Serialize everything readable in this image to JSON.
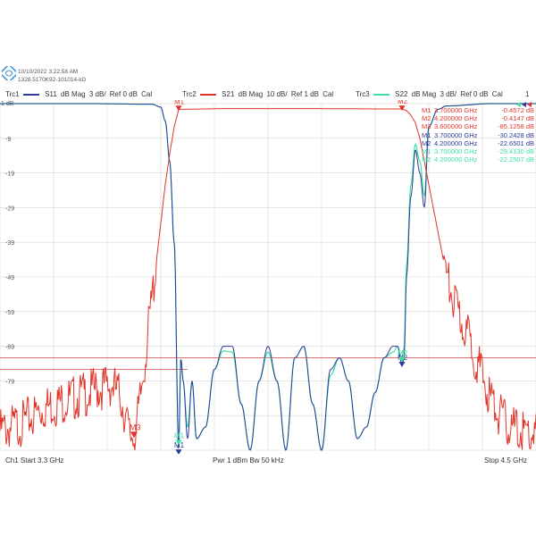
{
  "header": {
    "timestamp": "10/10/2022 3:22:58 AM",
    "device_id": "1328.5170K92-101014-kD"
  },
  "traces": [
    {
      "id": "Trc1",
      "param": "S11",
      "format": "dB Mag",
      "scale": "3 dB/",
      "ref": "Ref 0 dB",
      "cal": "Cal",
      "color": "#2b3a9c"
    },
    {
      "id": "Trc2",
      "param": "S21",
      "format": "dB Mag",
      "scale": "10 dB/",
      "ref": "Ref 1 dB",
      "cal": "Cal",
      "color": "#e0342a"
    },
    {
      "id": "Trc3",
      "param": "S22",
      "format": "dB Mag",
      "scale": "3 dB/",
      "ref": "Ref 0 dB",
      "cal": "Cal",
      "color": "#3ee0a0"
    }
  ],
  "channel_tag": "1",
  "footer": {
    "start": "Ch1  Start  3.3 GHz",
    "power": "Pwr  1 dBm  Bw  50 kHz",
    "stop": "Stop  4.5 GHz"
  },
  "markers_table": [
    {
      "m": "M1",
      "freq": "3.700000 GHz",
      "val": "-0.4572 dB",
      "color": "#e0342a"
    },
    {
      "m": "M2",
      "freq": "4.200000 GHz",
      "val": "-0.4147 dB",
      "color": "#e0342a"
    },
    {
      "m": "M3",
      "freq": "3.600000 GHz",
      "val": "-85.1258 dB",
      "color": "#e0342a"
    },
    {
      "m": "M1",
      "freq": "3.700000 GHz",
      "val": "-30.2428 dB",
      "color": "#2b3a9c"
    },
    {
      "m": "M2",
      "freq": "4.200000 GHz",
      "val": "-22.6501 dB",
      "color": "#2b3a9c"
    },
    {
      "m": "M1",
      "freq": "3.700000 GHz",
      "val": "-29.4130 dB",
      "color": "#3ee0a0"
    },
    {
      "m": "M2",
      "freq": "4.200000 GHz",
      "val": "-22.2507 dB",
      "color": "#3ee0a0"
    }
  ],
  "y_tick_labels": [
    "1 dB",
    "-9",
    "-19",
    "-29",
    "-39",
    "-49",
    "-59",
    "-69",
    "-79"
  ],
  "limit_label": "",
  "chart_data": {
    "type": "line",
    "x_unit": "GHz",
    "xlim": [
      3.3,
      4.5
    ],
    "s21_ylim": [
      -89,
      1
    ],
    "refl_ylim": [
      -30,
      0
    ],
    "series": [
      {
        "name": "S21",
        "color": "#e0342a",
        "x": [
          3.3,
          3.35,
          3.4,
          3.45,
          3.5,
          3.52,
          3.55,
          3.57,
          3.58,
          3.59,
          3.6,
          3.61,
          3.62,
          3.63,
          3.64,
          3.65,
          3.66,
          3.67,
          3.68,
          3.69,
          3.7,
          3.75,
          3.8,
          3.9,
          4.0,
          4.1,
          4.15,
          4.18,
          4.2,
          4.21,
          4.22,
          4.23,
          4.24,
          4.25,
          4.26,
          4.27,
          4.28,
          4.29,
          4.3,
          4.32,
          4.35,
          4.38,
          4.4,
          4.42,
          4.44,
          4.46,
          4.5
        ],
        "y": [
          -84,
          -82,
          -78,
          -76,
          -74,
          -73,
          -72,
          -75,
          -80,
          -85,
          -85,
          -80,
          -70,
          -60,
          -50,
          -40,
          -30,
          -20,
          -12,
          -5,
          -0.5,
          -0.4,
          -0.3,
          -0.3,
          -0.3,
          -0.35,
          -0.4,
          -0.4,
          -0.4,
          -0.8,
          -2,
          -4,
          -8,
          -14,
          -20,
          -26,
          -32,
          -38,
          -44,
          -52,
          -60,
          -70,
          -76,
          -80,
          -83,
          -84,
          -85
        ]
      },
      {
        "name": "S11",
        "color": "#2b3a9c",
        "x": [
          3.3,
          3.5,
          3.64,
          3.66,
          3.67,
          3.68,
          3.69,
          3.7,
          3.705,
          3.71,
          3.72,
          3.73,
          3.74,
          3.76,
          3.78,
          3.8,
          3.82,
          3.84,
          3.86,
          3.88,
          3.9,
          3.92,
          3.94,
          3.96,
          3.98,
          4.0,
          4.02,
          4.04,
          4.06,
          4.08,
          4.1,
          4.12,
          4.14,
          4.16,
          4.18,
          4.19,
          4.2,
          4.205,
          4.21,
          4.22,
          4.23,
          4.24,
          4.25,
          4.26,
          4.28,
          4.3,
          4.4,
          4.5
        ],
        "y": [
          0,
          0,
          -0.05,
          -0.3,
          -1.5,
          -5,
          -12,
          -30,
          -22,
          -24,
          -29,
          -24,
          -29,
          -28,
          -23,
          -21,
          -21,
          -26,
          -30,
          -24,
          -21,
          -24,
          -30,
          -22,
          -21,
          -26,
          -30,
          -23,
          -22,
          -24,
          -29,
          -28,
          -25,
          -22,
          -21,
          -21,
          -22.6,
          -22,
          -15,
          -8,
          -4,
          -6,
          -9,
          -2,
          -0.5,
          -0.2,
          0,
          0
        ]
      },
      {
        "name": "S22",
        "color": "#3ee0a0",
        "x": [
          3.3,
          3.5,
          3.64,
          3.66,
          3.67,
          3.68,
          3.69,
          3.7,
          3.705,
          3.71,
          3.72,
          3.73,
          3.74,
          3.76,
          3.78,
          3.8,
          3.82,
          3.84,
          3.86,
          3.88,
          3.9,
          3.92,
          3.94,
          3.96,
          3.98,
          4.0,
          4.02,
          4.04,
          4.06,
          4.08,
          4.1,
          4.12,
          4.14,
          4.16,
          4.18,
          4.19,
          4.2,
          4.205,
          4.21,
          4.22,
          4.23,
          4.24,
          4.25,
          4.26,
          4.28,
          4.3,
          4.4,
          4.5
        ],
        "y": [
          0,
          0,
          -0.05,
          -0.3,
          -1.5,
          -5,
          -12,
          -29.4,
          -22,
          -24,
          -28,
          -24,
          -29,
          -28,
          -23,
          -21.4,
          -21.5,
          -26,
          -30,
          -24,
          -21.5,
          -24,
          -30,
          -22,
          -21,
          -26,
          -30,
          -23.5,
          -22,
          -24,
          -29,
          -28,
          -25,
          -22,
          -21.5,
          -21,
          -22.3,
          -21,
          -14,
          -7,
          -3.5,
          -5,
          -8,
          -2,
          -0.5,
          -0.2,
          0,
          0
        ]
      }
    ],
    "markers": [
      {
        "name": "M1",
        "x": 3.7,
        "trace": "S21",
        "y": -0.4572
      },
      {
        "name": "M2",
        "x": 4.2,
        "trace": "S21",
        "y": -0.4147
      },
      {
        "name": "M3",
        "x": 3.6,
        "trace": "S21",
        "y": -85.1258
      },
      {
        "name": "M1",
        "x": 3.7,
        "trace": "S11",
        "y": -30.2428
      },
      {
        "name": "M2",
        "x": 4.2,
        "trace": "S11",
        "y": -22.6501
      },
      {
        "name": "M1",
        "x": 3.7,
        "trace": "S22",
        "y": -29.413
      },
      {
        "name": "M2",
        "x": 4.2,
        "trace": "S22",
        "y": -22.2507
      }
    ],
    "limit_lines": [
      {
        "y": -65,
        "x_from": 3.3,
        "x_to": 4.5
      },
      {
        "y": -68,
        "x_from": 3.3,
        "x_to": 3.72
      }
    ],
    "grid": true,
    "x_divisions": 10,
    "y_divisions": 10
  }
}
